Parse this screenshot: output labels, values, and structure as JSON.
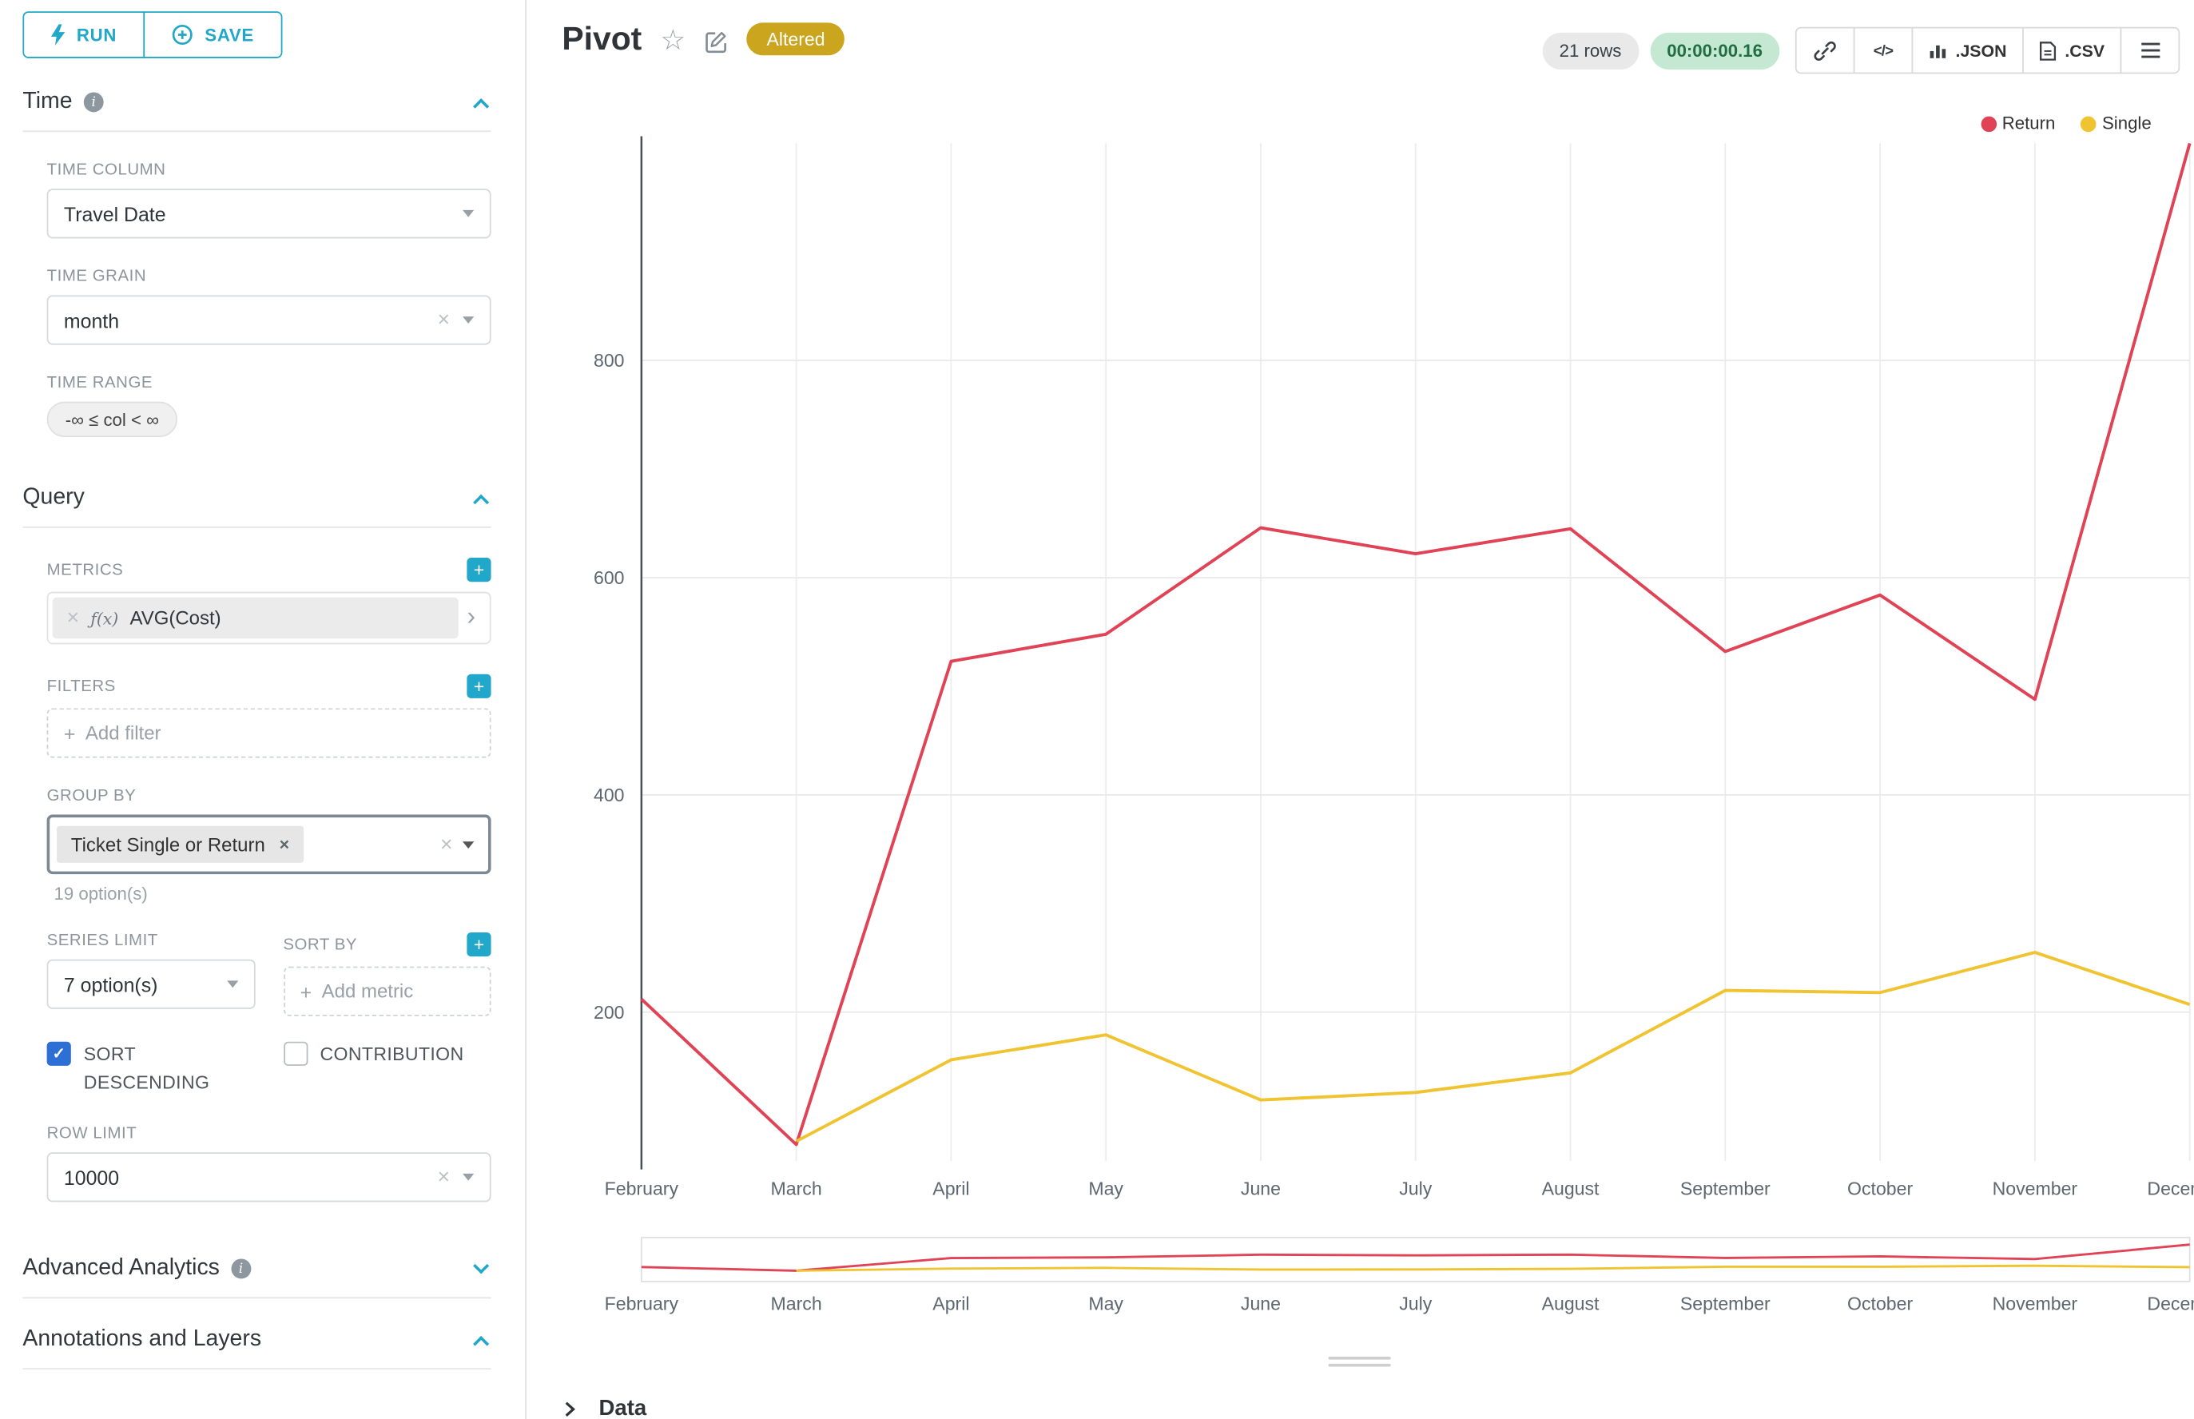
{
  "sidebar": {
    "run_label": "RUN",
    "save_label": "SAVE",
    "time": {
      "title": "Time",
      "time_column_label": "TIME COLUMN",
      "time_column_value": "Travel Date",
      "time_grain_label": "TIME GRAIN",
      "time_grain_value": "month",
      "time_range_label": "TIME RANGE",
      "time_range_value": "-∞ ≤ col < ∞"
    },
    "query": {
      "title": "Query",
      "metrics_label": "METRICS",
      "metric_fx": "ƒ(x)",
      "metric_value": "AVG(Cost)",
      "filters_label": "FILTERS",
      "add_filter_placeholder": "Add filter",
      "group_by_label": "GROUP BY",
      "group_by_chip": "Ticket Single or Return",
      "group_by_hint": "19 option(s)",
      "series_limit_label": "SERIES LIMIT",
      "series_limit_value": "7 option(s)",
      "sort_by_label": "SORT BY",
      "add_metric_placeholder": "Add metric",
      "sort_descending_label": "SORT DESCENDING",
      "sort_descending_checked": true,
      "contribution_label": "CONTRIBUTION",
      "contribution_checked": false,
      "row_limit_label": "ROW LIMIT",
      "row_limit_value": "10000"
    },
    "advanced_title": "Advanced Analytics",
    "annotations_title": "Annotations and Layers"
  },
  "header": {
    "title": "Pivot",
    "altered_badge": "Altered",
    "row_count": "21 rows",
    "timer": "00:00:00.16",
    "json_label": ".JSON",
    "csv_label": ".CSV"
  },
  "footer": {
    "data_label": "Data"
  },
  "colors": {
    "primary": "#20a7c9",
    "altered_badge_bg": "#cba51e",
    "timer_badge_bg": "#c4e8d2",
    "timer_badge_text": "#216e43",
    "checkbox_checked": "#2d6fd4",
    "return_line": "#e04355",
    "single_line": "#f0c330"
  },
  "chart_data": {
    "type": "line",
    "x": [
      "February",
      "March",
      "April",
      "May",
      "June",
      "July",
      "August",
      "September",
      "October",
      "November",
      "December"
    ],
    "series": [
      {
        "name": "Return",
        "color": "#e04355",
        "values": [
          212,
          78,
          523,
          548,
          646,
          622,
          645,
          532,
          584,
          488,
          1000
        ]
      },
      {
        "name": "Single",
        "color": "#f0c330",
        "values": [
          null,
          81,
          156,
          179,
          119,
          126,
          144,
          220,
          218,
          255,
          207
        ]
      }
    ],
    "yticks": [
      200,
      400,
      600,
      800
    ],
    "ylim": [
      63,
      1000
    ],
    "xlabel": "",
    "ylabel": "",
    "grid": true,
    "legend_position": "top-right",
    "has_mini_preview": true
  }
}
